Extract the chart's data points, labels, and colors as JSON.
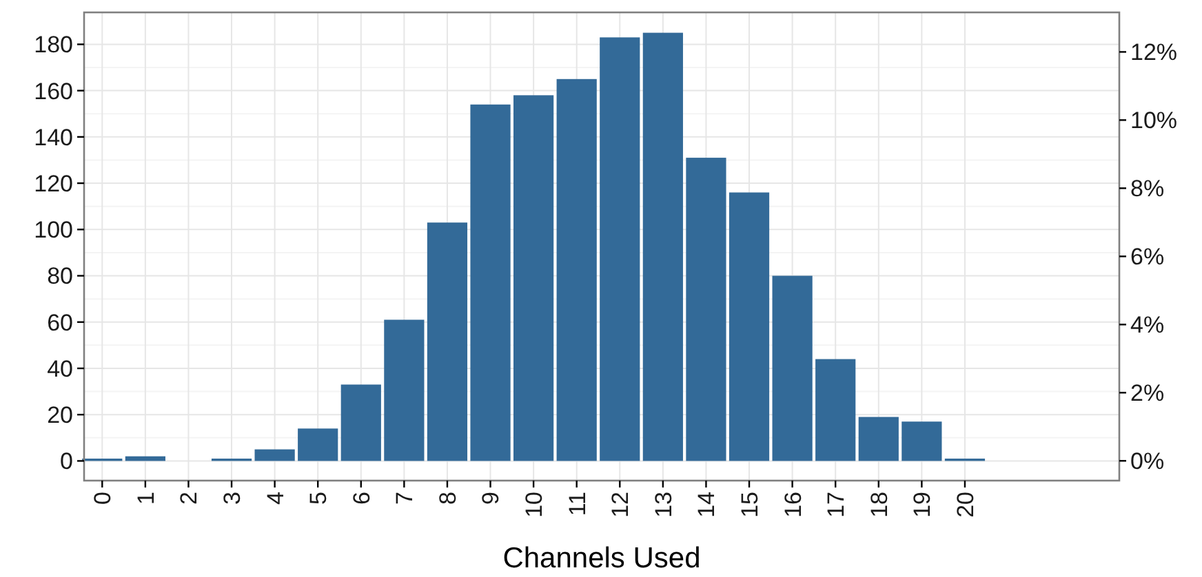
{
  "chart_data": {
    "type": "bar",
    "xlabel": "Channels Used",
    "x": [
      0,
      1,
      2,
      3,
      4,
      5,
      6,
      7,
      8,
      9,
      10,
      11,
      12,
      13,
      14,
      15,
      16,
      17,
      18,
      19,
      20
    ],
    "values": [
      1,
      2,
      0,
      1,
      5,
      14,
      33,
      61,
      103,
      154,
      158,
      165,
      183,
      185,
      131,
      116,
      80,
      44,
      19,
      17,
      1
    ],
    "color": "#336a98",
    "xlim": [
      -0.42,
      23.58
    ],
    "xticks": [
      0,
      1,
      2,
      3,
      4,
      5,
      6,
      7,
      8,
      9,
      10,
      11,
      12,
      13,
      14,
      15,
      16,
      17,
      18,
      19,
      20
    ],
    "ylim": [
      -8.5,
      193.8
    ],
    "yticks": [
      0,
      20,
      40,
      60,
      80,
      100,
      120,
      140,
      160,
      180
    ],
    "y2lim": [
      -0.58,
      13.16
    ],
    "y2ticks": [
      {
        "value": 0,
        "label": "0%"
      },
      {
        "value": 2,
        "label": "2%"
      },
      {
        "value": 4,
        "label": "4%"
      },
      {
        "value": 6,
        "label": "6%"
      },
      {
        "value": 8,
        "label": "8%"
      },
      {
        "value": 10,
        "label": "10%"
      },
      {
        "value": 12,
        "label": "12%"
      }
    ],
    "grid": true
  }
}
